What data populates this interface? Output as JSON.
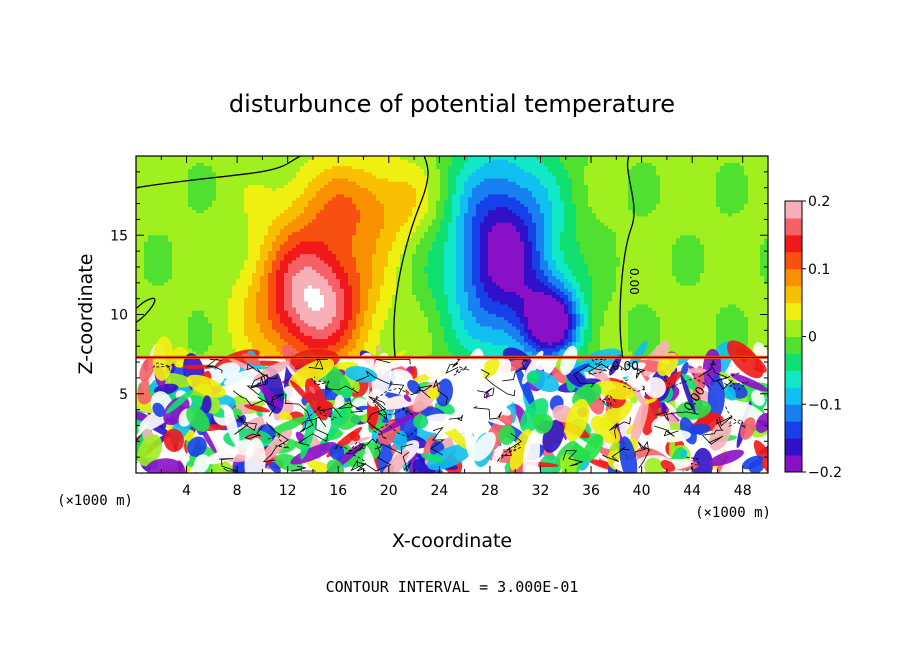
{
  "chart_data": {
    "type": "heatmap",
    "title": "disturbunce of potential temperature",
    "xlabel": "X-coordinate",
    "ylabel": "Z-coordinate",
    "x_unit": "(×1000 m)",
    "y_unit": "(×1000 m)",
    "xlim": [
      0,
      50
    ],
    "ylim": [
      0,
      20
    ],
    "x_ticks": [
      4,
      8,
      12,
      16,
      20,
      24,
      28,
      32,
      36,
      40,
      44,
      48
    ],
    "x_tick_labels": [
      "4",
      "8",
      "12",
      "16",
      "20",
      "24",
      "28",
      "32",
      "36",
      "40",
      "44",
      "48"
    ],
    "y_ticks": [
      5,
      10,
      15
    ],
    "y_tick_labels": [
      "5",
      "10",
      "15"
    ],
    "colorbar": {
      "range": [
        -0.2,
        0.2
      ],
      "tick_values": [
        0.2,
        0.1,
        0,
        -0.1,
        -0.2
      ],
      "tick_labels": [
        "0.2",
        "0.1",
        "0",
        "−0.1",
        "−0.2"
      ],
      "colors": [
        "#8a10c8",
        "#3010c8",
        "#1840e8",
        "#1880f0",
        "#10c0f0",
        "#10e8c8",
        "#10e070",
        "#50e030",
        "#a0f020",
        "#f0f010",
        "#f8c000",
        "#f89000",
        "#f85010",
        "#f01818",
        "#f86068",
        "#f8b0b8"
      ]
    },
    "contour_interval": "CONTOUR INTERVAL = 3.000E-01",
    "contour_labels": [
      "0.00",
      "0.00",
      "0.00"
    ],
    "features": [
      {
        "name": "warm anomaly",
        "x_center": 14,
        "z_center": 11,
        "x_halfwidth": 4.5,
        "z_halfwidth": 4.5,
        "value": 0.2
      },
      {
        "name": "cold anomaly",
        "x_center": 29,
        "z_center": 14,
        "x_halfwidth": 4.5,
        "z_halfwidth": 6.5,
        "value": -0.2
      },
      {
        "name": "cold secondary",
        "x_center": 33,
        "z_center": 9.5,
        "x_halfwidth": 2.5,
        "z_halfwidth": 2.5,
        "value": -0.18
      },
      {
        "name": "warm plume",
        "x_center": 18,
        "z_center": 17,
        "x_halfwidth": 6,
        "z_halfwidth": 3,
        "value": 0.08
      }
    ],
    "turbulent_layer_top_z": 7.3
  },
  "colors": {
    "background": "#ffffff",
    "frame": "#000000",
    "over_range": "#ffffff"
  }
}
